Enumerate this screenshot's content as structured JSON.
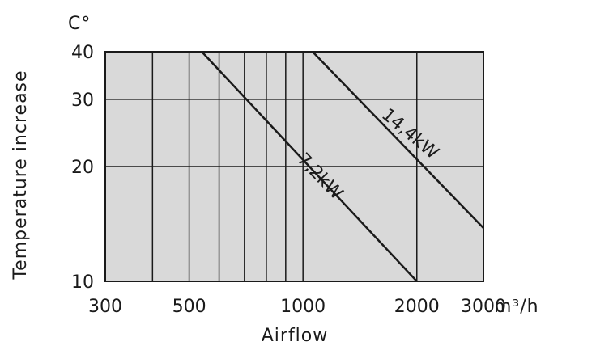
{
  "chart_data": {
    "type": "line",
    "title": "",
    "xlabel": "Airflow",
    "ylabel": "Temperature increase",
    "x_unit": "m³/h",
    "y_unit": "C°",
    "x_scale": "log",
    "y_scale": "log",
    "xlim": [
      300,
      3000
    ],
    "ylim": [
      10,
      40
    ],
    "x_ticks": [
      300,
      500,
      1000,
      2000,
      3000
    ],
    "x_tick_labels": [
      "300",
      "500",
      "1000",
      "2000",
      "3000"
    ],
    "x_gridlines": [
      400,
      500,
      600,
      700,
      800,
      900,
      1000,
      2000
    ],
    "y_ticks": [
      10,
      20,
      30,
      40
    ],
    "y_tick_labels": [
      "10",
      "20",
      "30",
      "40"
    ],
    "grid": true,
    "plot_background": "#d9d9d9",
    "line_color": "#1a1a1a",
    "series": [
      {
        "name": "7,2kW",
        "x": [
          540,
          2000
        ],
        "y": [
          40,
          10
        ]
      },
      {
        "name": "14,4kW",
        "x": [
          1060,
          3000
        ],
        "y": [
          40,
          13.8
        ]
      }
    ]
  }
}
